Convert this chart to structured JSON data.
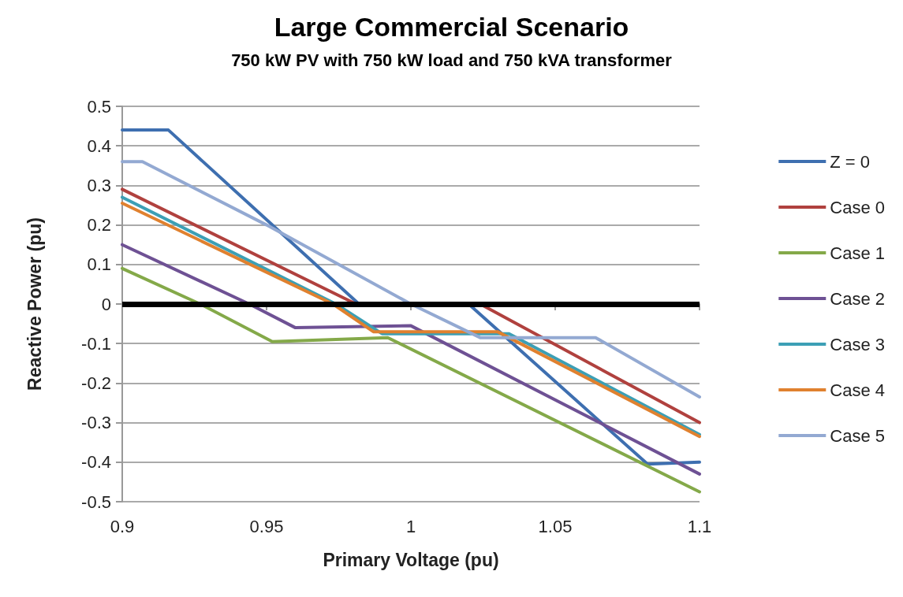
{
  "chart_data": {
    "type": "line",
    "title": "Large Commercial Scenario",
    "subtitle": "750 kW PV with 750 kW load and 750 kVA transformer",
    "xlabel": "Primary Voltage (pu)",
    "ylabel": "Reactive Power (pu)",
    "xlim": [
      0.9,
      1.1
    ],
    "xticks": [
      0.9,
      0.95,
      1,
      1.05,
      1.1
    ],
    "ylim": [
      -0.5,
      0.5
    ],
    "yticks": [
      -0.5,
      -0.4,
      -0.3,
      -0.2,
      -0.1,
      0,
      0.1,
      0.2,
      0.3,
      0.4,
      0.5
    ],
    "grid": "y",
    "legend": "right",
    "marker": "none",
    "line_style": "solid",
    "ref_lines": [
      {
        "axis": "y",
        "value": 0,
        "color": "#000000"
      }
    ],
    "series": [
      {
        "name": "Z = 0",
        "color": "#3e6fb0",
        "x": [
          0.9,
          0.916,
          0.982,
          1.02,
          1.082,
          1.1
        ],
        "values": [
          0.44,
          0.44,
          0,
          0,
          -0.405,
          -0.4
        ]
      },
      {
        "name": "Case 0",
        "color": "#b0413e",
        "x": [
          0.9,
          0.981,
          1.024,
          1.1
        ],
        "values": [
          0.29,
          0,
          0,
          -0.3
        ]
      },
      {
        "name": "Case 1",
        "color": "#84a949",
        "x": [
          0.9,
          0.927,
          0.952,
          0.992,
          1.1
        ],
        "values": [
          0.09,
          0,
          -0.095,
          -0.085,
          -0.475
        ]
      },
      {
        "name": "Case 2",
        "color": "#6e5194",
        "x": [
          0.9,
          0.944,
          0.96,
          1.0,
          1.1
        ],
        "values": [
          0.15,
          0,
          -0.06,
          -0.055,
          -0.43
        ]
      },
      {
        "name": "Case 3",
        "color": "#3c9fb5",
        "x": [
          0.9,
          0.974,
          0.99,
          1.034,
          1.1
        ],
        "values": [
          0.27,
          0,
          -0.075,
          -0.075,
          -0.33
        ]
      },
      {
        "name": "Case 4",
        "color": "#e0812f",
        "x": [
          0.9,
          0.973,
          0.987,
          1.03,
          1.1
        ],
        "values": [
          0.255,
          0,
          -0.07,
          -0.07,
          -0.335
        ]
      },
      {
        "name": "Case 5",
        "color": "#93a9d2",
        "x": [
          0.9,
          0.907,
          0.95,
          1.0,
          1.024,
          1.064,
          1.1
        ],
        "values": [
          0.36,
          0.36,
          0.2,
          0,
          -0.085,
          -0.085,
          -0.235
        ]
      }
    ]
  }
}
